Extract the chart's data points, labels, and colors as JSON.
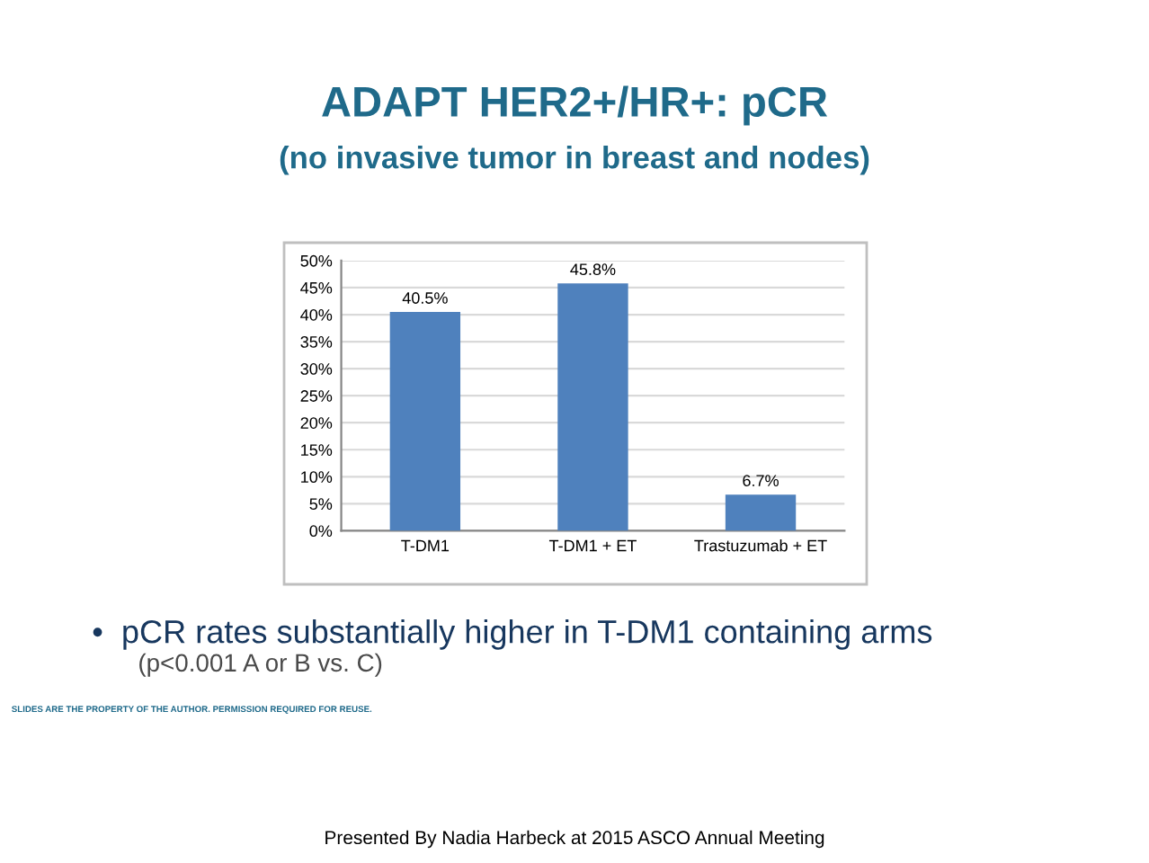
{
  "chart_data": {
    "type": "bar",
    "title": "ADAPT HER2+/HR+: pCR",
    "subtitle": "(no invasive tumor in breast and nodes)",
    "categories": [
      "T-DM1",
      "T-DM1 + ET",
      "Trastuzumab + ET"
    ],
    "values": [
      40.5,
      45.8,
      6.7
    ],
    "value_labels": [
      "40.5%",
      "45.8%",
      "6.7%"
    ],
    "color": "#4f81bd",
    "ylim": [
      0,
      50
    ],
    "yticks": [
      {
        "value": 0,
        "label": "0%"
      },
      {
        "value": 5,
        "label": "5%"
      },
      {
        "value": 10,
        "label": "10%"
      },
      {
        "value": 15,
        "label": "15%"
      },
      {
        "value": 20,
        "label": "20%"
      },
      {
        "value": 25,
        "label": "25%"
      },
      {
        "value": 30,
        "label": "30%"
      },
      {
        "value": 35,
        "label": "35%"
      },
      {
        "value": 40,
        "label": "40%"
      },
      {
        "value": 45,
        "label": "45%"
      },
      {
        "value": 50,
        "label": "50%"
      }
    ],
    "grid": "y",
    "annotations": [
      "•  pCR rates substantially higher in T-DM1 containing arms",
      "(p<0.001 A or B vs. C)",
      "SLIDES ARE THE PROPERTY OF THE AUTHOR. PERMISSION REQUIRED FOR REUSE.",
      "Presented By Nadia Harbeck at 2015 ASCO Annual Meeting"
    ]
  }
}
